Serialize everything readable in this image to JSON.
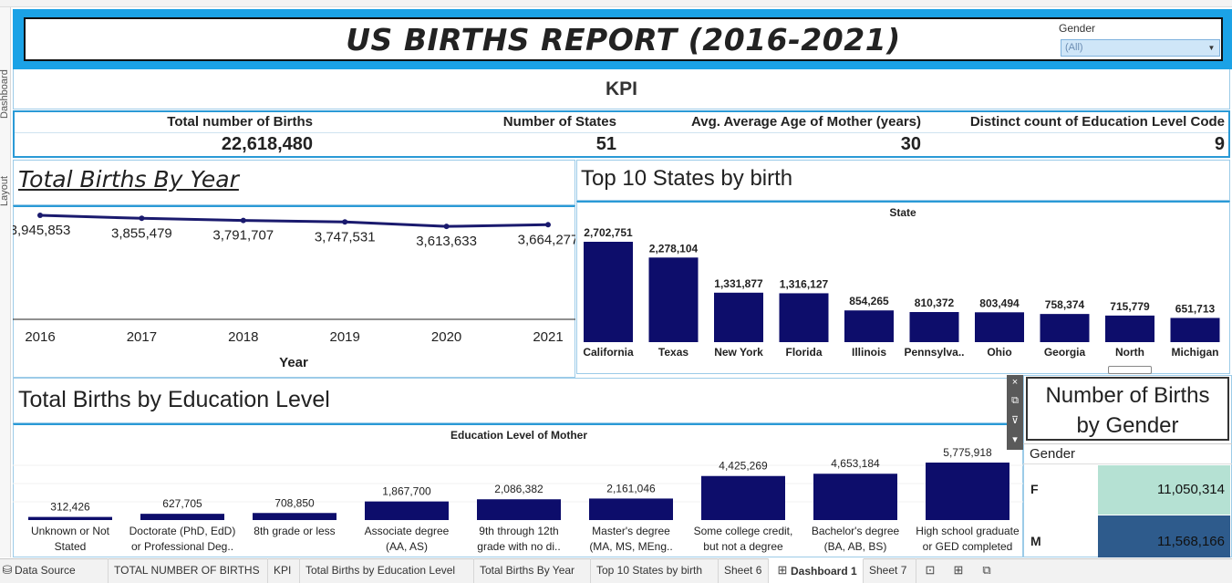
{
  "side_tabs": [
    "Dashboard",
    "Layout"
  ],
  "title": "US BIRTHS REPORT (2016-2021)",
  "filter": {
    "label": "Gender",
    "value": "(All)"
  },
  "kpi": {
    "title": "KPI",
    "items": [
      {
        "label": "Total number of Births",
        "value": "22,618,480"
      },
      {
        "label": "Number of States",
        "value": "51"
      },
      {
        "label": "Avg. Average Age of Mother (years)",
        "value": "30"
      },
      {
        "label": "Distinct count of Education Level Code",
        "value": "9"
      }
    ]
  },
  "year_panel_title": "Total Births By Year",
  "states_panel_title": "Top 10 States by birth",
  "education_panel_title": "Total Births by Education Level",
  "gender_panel": {
    "title_line1": "Number of Births",
    "title_line2": "by Gender",
    "column_header": "Gender",
    "rows": [
      {
        "label": "F",
        "value": "11,050,314",
        "color": "#b5e1d3"
      },
      {
        "label": "M",
        "value": "11,568,166",
        "color": "#2e5b8c"
      }
    ]
  },
  "chart_data": [
    {
      "type": "line",
      "x": [
        2016,
        2017,
        2018,
        2019,
        2020,
        2021
      ],
      "tick_labels": [
        "2016",
        "2017",
        "2018",
        "2019",
        "2020",
        "2021"
      ],
      "values": [
        3945853,
        3855479,
        3791707,
        3747531,
        3613633,
        3664277
      ],
      "data_labels": [
        "3,945,853",
        "3,855,479",
        "3,791,707",
        "3,747,531",
        "3,613,633",
        "3,664,277"
      ],
      "xlabel": "Year",
      "ylabel": "",
      "color": "#1a1a6e"
    },
    {
      "type": "bar",
      "header": "State",
      "categories": [
        "California",
        "Texas",
        "New York",
        "Florida",
        "Illinois",
        "Pennsylva..",
        "Ohio",
        "Georgia",
        "North",
        "Michigan"
      ],
      "values": [
        2702751,
        2278104,
        1331877,
        1316127,
        854265,
        810372,
        803494,
        758374,
        715779,
        651713
      ],
      "data_labels": [
        "2,702,751",
        "2,278,104",
        "1,331,877",
        "1,316,127",
        "854,265",
        "810,372",
        "803,494",
        "758,374",
        "715,779",
        "651,713"
      ],
      "color": "#0d0d6b"
    },
    {
      "type": "bar",
      "header": "Education Level of Mother",
      "categories": [
        [
          "Unknown or Not",
          "Stated"
        ],
        [
          "Doctorate (PhD, EdD)",
          "or Professional Deg.."
        ],
        [
          "8th grade or less",
          ""
        ],
        [
          "Associate degree",
          "(AA, AS)"
        ],
        [
          "9th through 12th",
          "grade with no di.."
        ],
        [
          "Master's degree",
          "(MA, MS, MEng.."
        ],
        [
          "Some college credit,",
          "but not a degree"
        ],
        [
          "Bachelor's degree",
          "(BA, AB, BS)"
        ],
        [
          "High school graduate",
          "or GED completed"
        ]
      ],
      "values": [
        312426,
        627705,
        708850,
        1867700,
        2086382,
        2161046,
        4425269,
        4653184,
        5775918
      ],
      "data_labels": [
        "312,426",
        "627,705",
        "708,850",
        "1,867,700",
        "2,086,382",
        "2,161,046",
        "4,425,269",
        "4,653,184",
        "5,775,918"
      ],
      "color": "#0d0d6b"
    }
  ],
  "gender_tools": [
    "×",
    "⧉",
    "⊽",
    "▾"
  ],
  "sheet_tabs": [
    {
      "label": "Data Source",
      "active": false
    },
    {
      "label": "TOTAL NUMBER OF BIRTHS",
      "active": false
    },
    {
      "label": "KPI",
      "active": false
    },
    {
      "label": "Total Births by Education Level",
      "active": false
    },
    {
      "label": "Total Births By Year",
      "active": false
    },
    {
      "label": "Top 10 States by birth",
      "active": false
    },
    {
      "label": "Sheet 6",
      "active": false
    },
    {
      "label": "Dashboard 1",
      "active": true
    },
    {
      "label": "Sheet 7",
      "active": false
    }
  ]
}
